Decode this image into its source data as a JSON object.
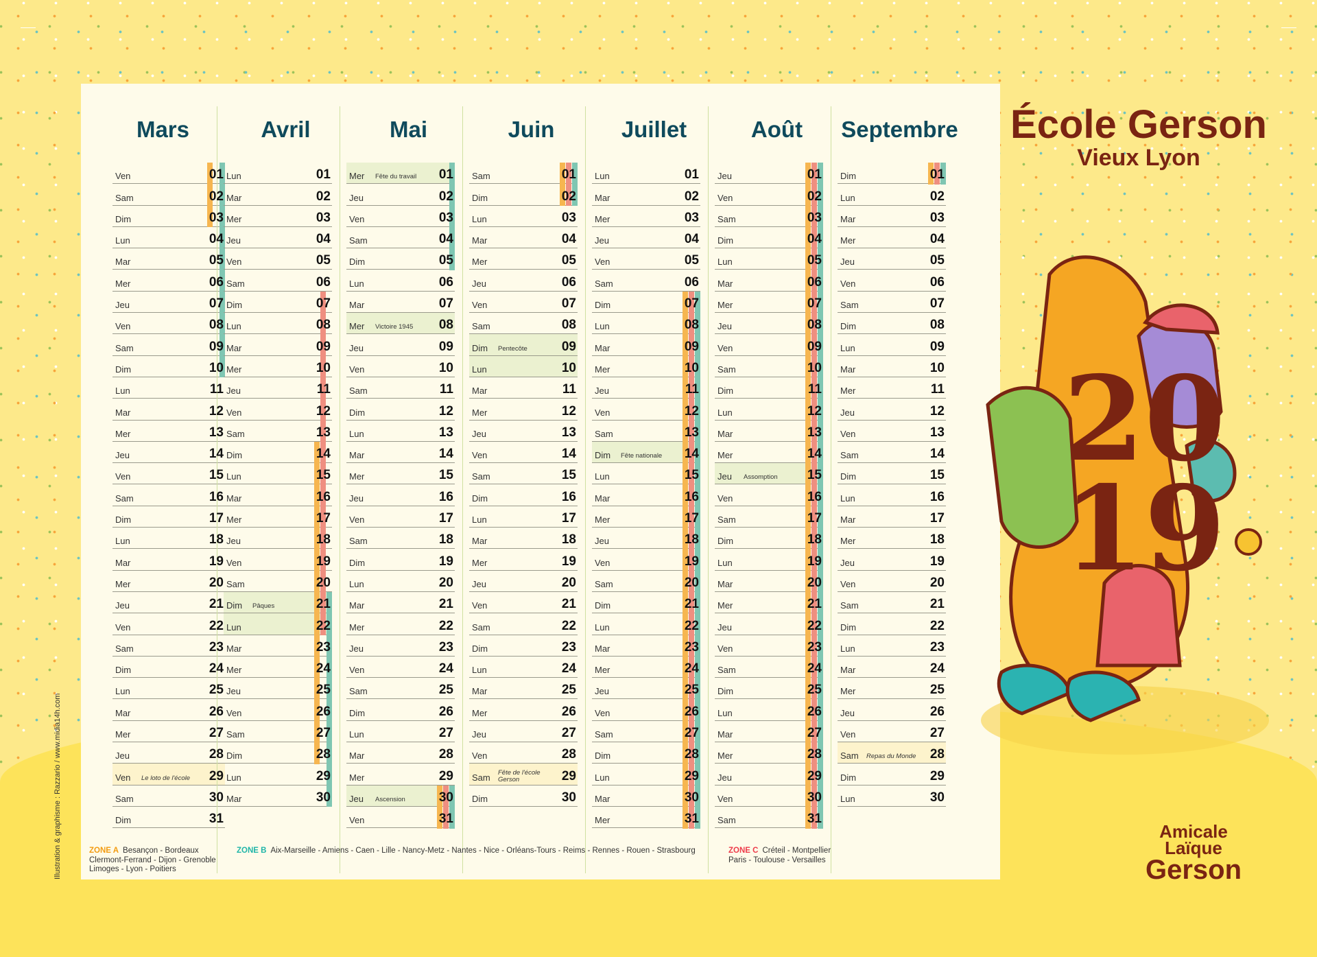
{
  "school": {
    "name": "École Gerson",
    "location": "Vieux Lyon"
  },
  "association_logo": [
    "Amicale",
    "Laïque",
    "Gerson"
  ],
  "year": "2019",
  "credit": "Illustration & graphisme : Razzario / www.midia14h.com",
  "colors": {
    "zone_A": "#f6b650",
    "zone_B": "#7fc6b2",
    "zone_C": "#ef8f80",
    "holiday": "#ebf1d0",
    "school_event": "#fdf3cc",
    "month_title": "#0f4a5c",
    "brand": "#7a2412"
  },
  "weekdays": [
    "Lun",
    "Mar",
    "Mer",
    "Jeu",
    "Ven",
    "Sam",
    "Dim"
  ],
  "months": [
    {
      "name": "Mars",
      "start_weekday": 4,
      "days": 31,
      "events": [
        {
          "day": 29,
          "label": "Le loto de l'école",
          "type": "school_event"
        }
      ],
      "vacations": {
        "A": [
          [
            1,
            3
          ]
        ],
        "B": [
          [
            1,
            10
          ]
        ],
        "C": []
      }
    },
    {
      "name": "Avril",
      "start_weekday": 0,
      "days": 30,
      "events": [
        {
          "day": 21,
          "label": "Pâques",
          "type": "holiday"
        },
        {
          "day": 22,
          "label": "",
          "type": "holiday"
        }
      ],
      "vacations": {
        "A": [
          [
            14,
            28
          ]
        ],
        "B": [
          [
            21,
            30
          ]
        ],
        "C": [
          [
            7,
            22
          ]
        ]
      }
    },
    {
      "name": "Mai",
      "start_weekday": 2,
      "days": 31,
      "events": [
        {
          "day": 1,
          "label": "Fête du travail",
          "type": "holiday"
        },
        {
          "day": 8,
          "label": "Victoire 1945",
          "type": "holiday"
        },
        {
          "day": 30,
          "label": "Ascension",
          "type": "holiday"
        }
      ],
      "vacations": {
        "A": [
          [
            30,
            31
          ]
        ],
        "B": [
          [
            1,
            5
          ],
          [
            30,
            31
          ]
        ],
        "C": [
          [
            30,
            31
          ]
        ]
      }
    },
    {
      "name": "Juin",
      "start_weekday": 5,
      "days": 30,
      "events": [
        {
          "day": 9,
          "label": "Pentecôte",
          "type": "holiday"
        },
        {
          "day": 10,
          "label": "",
          "type": "holiday"
        },
        {
          "day": 29,
          "label": "Fête de l'école Gerson",
          "type": "school_event"
        }
      ],
      "vacations": {
        "A": [
          [
            1,
            2
          ]
        ],
        "B": [
          [
            1,
            2
          ]
        ],
        "C": [
          [
            1,
            2
          ]
        ]
      }
    },
    {
      "name": "Juillet",
      "start_weekday": 0,
      "days": 31,
      "events": [
        {
          "day": 14,
          "label": "Fête nationale",
          "type": "holiday"
        }
      ],
      "vacations": {
        "A": [
          [
            7,
            31
          ]
        ],
        "B": [
          [
            7,
            31
          ]
        ],
        "C": [
          [
            7,
            31
          ]
        ]
      }
    },
    {
      "name": "Août",
      "start_weekday": 3,
      "days": 31,
      "events": [
        {
          "day": 15,
          "label": "Assomption",
          "type": "holiday"
        }
      ],
      "vacations": {
        "A": [
          [
            1,
            31
          ]
        ],
        "B": [
          [
            1,
            31
          ]
        ],
        "C": [
          [
            1,
            31
          ]
        ]
      }
    },
    {
      "name": "Septembre",
      "start_weekday": 6,
      "days": 30,
      "events": [
        {
          "day": 28,
          "label": "Repas du Monde",
          "type": "school_event"
        }
      ],
      "vacations": {
        "A": [
          [
            1,
            1
          ]
        ],
        "B": [
          [
            1,
            1
          ]
        ],
        "C": [
          [
            1,
            1
          ]
        ]
      }
    }
  ],
  "zones": [
    {
      "label": "ZONE A",
      "cities": "Besançon - Bordeaux Clermont-Ferrand - Dijon - Grenoble Limoges - Lyon - Poitiers",
      "color": "#f39c12"
    },
    {
      "label": "ZONE B",
      "cities": "Aix-Marseille - Amiens - Caen - Lille - Nancy-Metz - Nantes - Nice - Orléans-Tours - Reims - Rennes - Rouen - Strasbourg",
      "color": "#1fb5a8"
    },
    {
      "label": "ZONE C",
      "cities": "Créteil - Montpellier Paris - Toulouse - Versailles",
      "color": "#ee3b4a"
    }
  ]
}
